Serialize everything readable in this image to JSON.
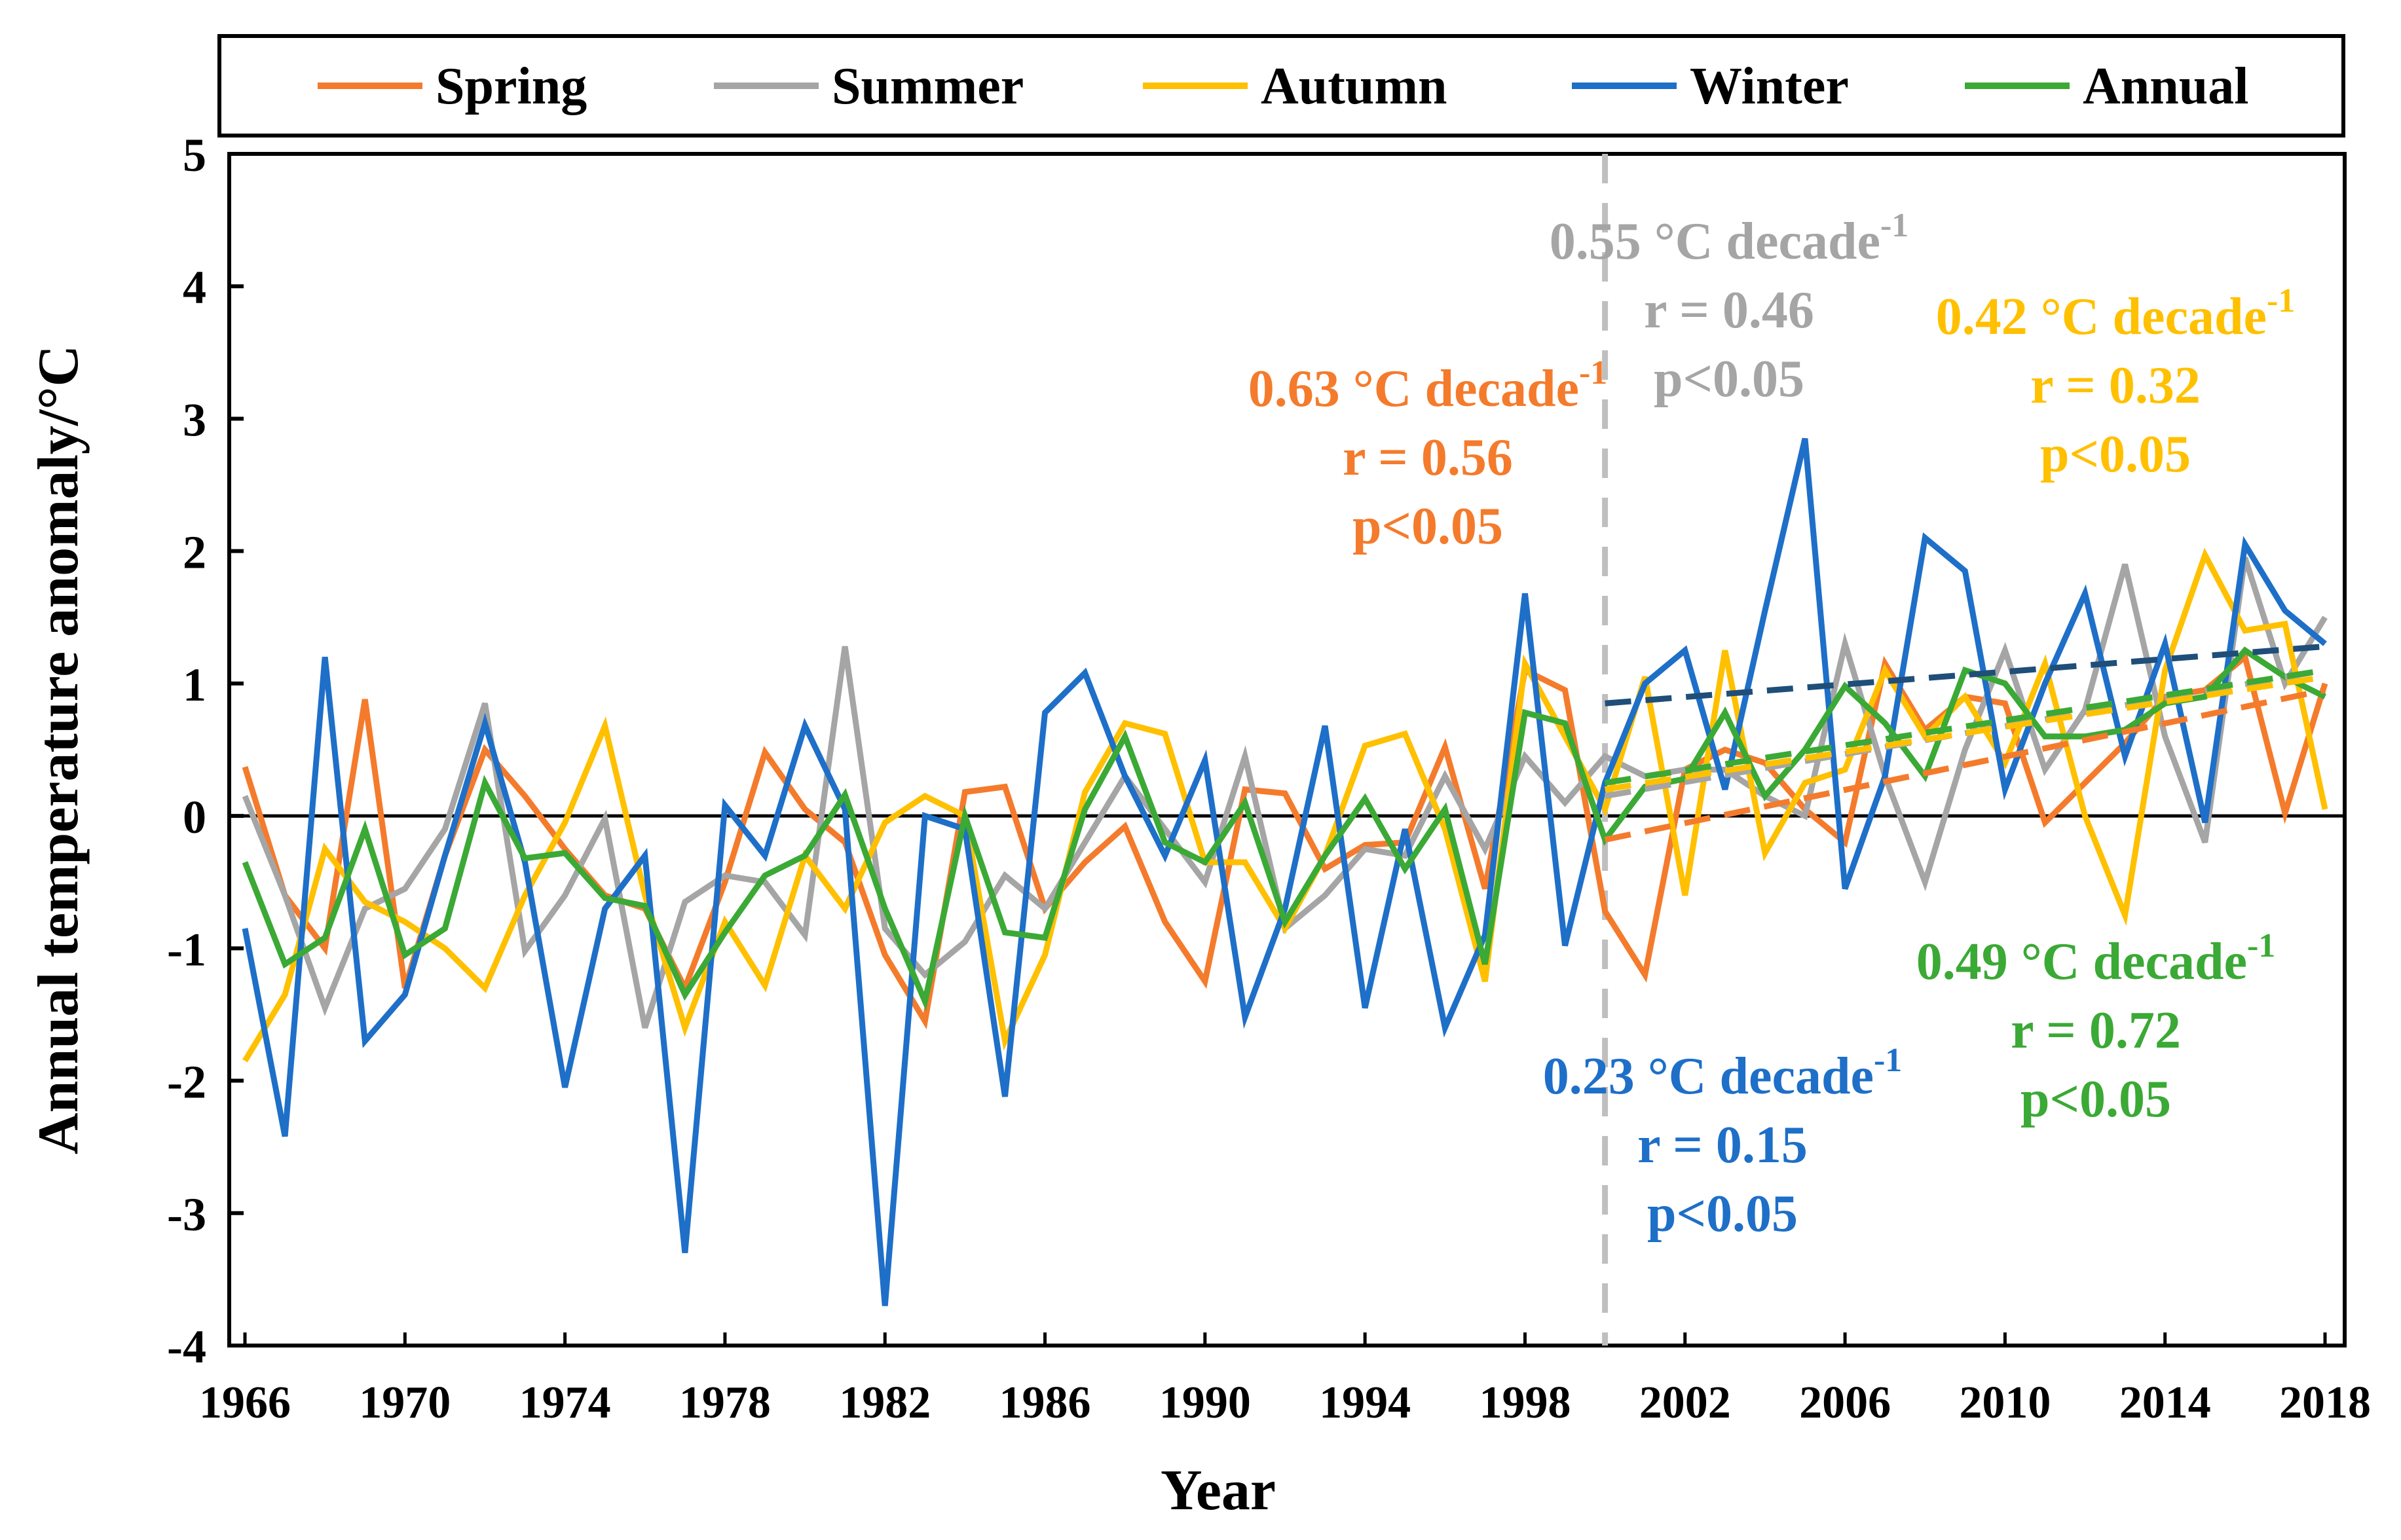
{
  "chart_data": {
    "type": "line",
    "title": "",
    "xlabel": "Year",
    "ylabel": "Annual temperature anomaly/°C",
    "xlim": [
      1966,
      2018
    ],
    "ylim": [
      -4,
      5
    ],
    "xticks": [
      1966,
      1970,
      1974,
      1978,
      1982,
      1986,
      1990,
      1994,
      1998,
      2002,
      2006,
      2010,
      2014,
      2018
    ],
    "yticks": [
      -4,
      -3,
      -2,
      -1,
      0,
      1,
      2,
      3,
      4,
      5
    ],
    "legend_position": "top",
    "breakpoint_year": 2000,
    "colors": {
      "Spring": "#F47B2C",
      "Summer": "#A5A5A5",
      "Autumn": "#FFC000",
      "Winter": "#1E6FC8",
      "Annual": "#3BA935",
      "WinterTrend": "#1F4E79"
    },
    "x": [
      1966,
      1967,
      1968,
      1969,
      1970,
      1971,
      1972,
      1973,
      1974,
      1975,
      1976,
      1977,
      1978,
      1979,
      1980,
      1981,
      1982,
      1983,
      1984,
      1985,
      1986,
      1987,
      1988,
      1989,
      1990,
      1991,
      1992,
      1993,
      1994,
      1995,
      1996,
      1997,
      1998,
      1999,
      2000,
      2001,
      2002,
      2003,
      2004,
      2005,
      2006,
      2007,
      2008,
      2009,
      2010,
      2011,
      2012,
      2013,
      2014,
      2015,
      2016,
      2017,
      2018
    ],
    "series": [
      {
        "name": "Spring",
        "values": [
          0.37,
          -0.6,
          -1.0,
          0.88,
          -1.3,
          -0.3,
          0.5,
          0.15,
          -0.25,
          -0.6,
          -0.7,
          -1.3,
          -0.5,
          0.48,
          0.05,
          -0.2,
          -1.05,
          -1.55,
          0.18,
          0.22,
          -0.7,
          -0.35,
          -0.08,
          -0.8,
          -1.25,
          0.2,
          0.17,
          -0.4,
          -0.22,
          -0.2,
          0.52,
          -0.55,
          1.1,
          0.95,
          -0.72,
          -1.2,
          0.35,
          0.5,
          0.4,
          0.05,
          -0.2,
          1.15,
          0.65,
          0.9,
          0.85,
          -0.05,
          0.25,
          0.55,
          0.9,
          0.95,
          1.2,
          0.02,
          1.0
        ]
      },
      {
        "name": "Summer",
        "values": [
          0.15,
          -0.6,
          -1.45,
          -0.7,
          -0.55,
          -0.1,
          0.85,
          -1.02,
          -0.6,
          -0.02,
          -1.6,
          -0.65,
          -0.45,
          -0.5,
          -0.9,
          1.28,
          -0.85,
          -1.2,
          -0.95,
          -0.45,
          -0.7,
          -0.2,
          0.3,
          -0.1,
          -0.5,
          0.45,
          -0.85,
          -0.6,
          -0.25,
          -0.3,
          0.3,
          -0.25,
          0.45,
          0.1,
          0.45,
          0.3,
          0.35,
          0.35,
          0.15,
          0.0,
          1.3,
          0.3,
          -0.5,
          0.5,
          1.25,
          0.35,
          0.8,
          1.9,
          0.6,
          -0.2,
          1.95,
          1.0,
          1.5
        ]
      },
      {
        "name": "Autumn",
        "values": [
          -1.85,
          -1.35,
          -0.25,
          -0.65,
          -0.8,
          -1.0,
          -1.3,
          -0.6,
          -0.05,
          0.68,
          -0.6,
          -1.6,
          -0.8,
          -1.28,
          -0.3,
          -0.7,
          -0.05,
          0.15,
          0.0,
          -1.7,
          -1.05,
          0.18,
          0.7,
          0.62,
          -0.35,
          -0.35,
          -0.85,
          -0.3,
          0.53,
          0.62,
          -0.1,
          -1.25,
          1.15,
          0.6,
          0.05,
          1.05,
          -0.6,
          1.25,
          -0.28,
          0.25,
          0.35,
          1.1,
          0.6,
          0.9,
          0.4,
          1.15,
          0.0,
          -0.75,
          1.1,
          1.97,
          1.4,
          1.45,
          0.05
        ]
      },
      {
        "name": "Winter",
        "values": [
          -0.85,
          -2.42,
          1.2,
          -1.7,
          -1.35,
          -0.3,
          0.7,
          -0.35,
          -2.05,
          -0.7,
          -0.3,
          -3.3,
          0.08,
          -0.3,
          0.68,
          0.05,
          -3.7,
          0.0,
          -0.1,
          -2.12,
          0.78,
          1.08,
          0.3,
          -0.3,
          0.42,
          -1.52,
          -0.7,
          0.68,
          -1.45,
          -0.1,
          -1.6,
          -0.9,
          1.68,
          -0.98,
          0.25,
          1.0,
          1.25,
          0.2,
          1.55,
          2.85,
          -0.55,
          0.3,
          2.1,
          1.85,
          0.2,
          1.0,
          1.68,
          0.45,
          1.3,
          -0.05,
          2.05,
          1.55,
          1.3
        ]
      },
      {
        "name": "Annual",
        "values": [
          -0.35,
          -1.12,
          -0.92,
          -0.1,
          -1.05,
          -0.85,
          0.25,
          -0.32,
          -0.28,
          -0.62,
          -0.68,
          -1.35,
          -0.88,
          -0.45,
          -0.3,
          0.16,
          -0.7,
          -1.4,
          0.0,
          -0.88,
          -0.92,
          0.05,
          0.6,
          -0.2,
          -0.35,
          0.1,
          -0.8,
          -0.3,
          0.13,
          -0.4,
          0.05,
          -1.12,
          0.78,
          0.7,
          -0.18,
          0.22,
          0.28,
          0.78,
          0.15,
          0.5,
          0.98,
          0.7,
          0.3,
          1.1,
          1.0,
          0.6,
          0.6,
          0.65,
          0.85,
          0.9,
          1.25,
          1.05,
          0.9
        ]
      }
    ],
    "trends": [
      {
        "name": "Spring",
        "x": [
          2000,
          2018
        ],
        "y": [
          -0.18,
          0.95
        ]
      },
      {
        "name": "Summer",
        "x": [
          2000,
          2018
        ],
        "y": [
          0.15,
          1.1
        ]
      },
      {
        "name": "Autumn",
        "x": [
          2000,
          2018
        ],
        "y": [
          0.2,
          1.05
        ]
      },
      {
        "name": "Winter",
        "x": [
          2000,
          2018
        ],
        "y": [
          0.85,
          1.28
        ]
      },
      {
        "name": "Annual",
        "x": [
          2000,
          2018
        ],
        "y": [
          0.25,
          1.1
        ]
      }
    ],
    "annotations": [
      {
        "series": "Summer",
        "rate": "0.55 °C decade",
        "sup": "-1",
        "r": "r = 0.46",
        "p": "p<0.05"
      },
      {
        "series": "Spring",
        "rate": "0.63 °C decade",
        "sup": "-1",
        "r": "r = 0.56",
        "p": "p<0.05"
      },
      {
        "series": "Autumn",
        "rate": "0.42 °C decade",
        "sup": "-1",
        "r": "r = 0.32",
        "p": "p<0.05"
      },
      {
        "series": "Annual",
        "rate": "0.49 °C decade",
        "sup": "-1",
        "r": "r = 0.72",
        "p": "p<0.05"
      },
      {
        "series": "Winter",
        "rate": "0.23 °C decade",
        "sup": "-1",
        "r": "r = 0.15",
        "p": "p<0.05"
      }
    ]
  }
}
